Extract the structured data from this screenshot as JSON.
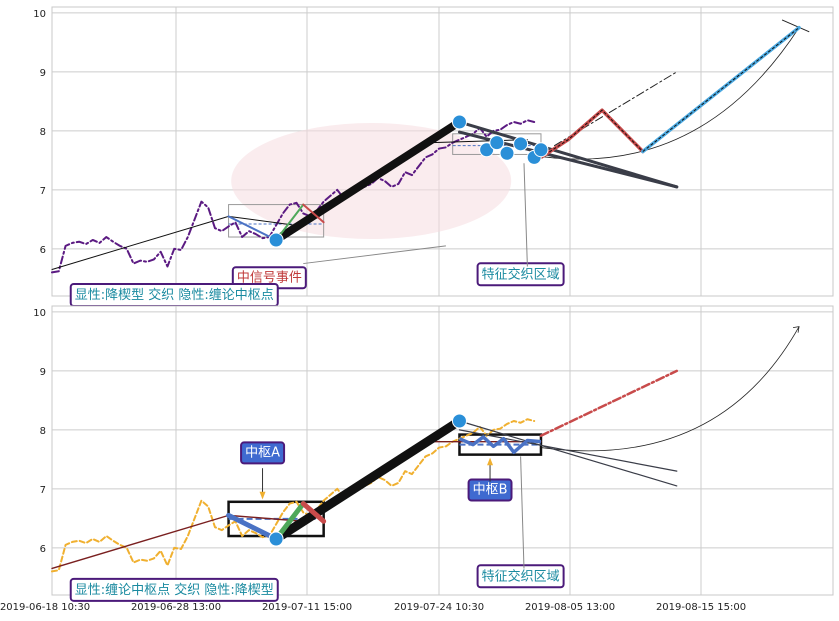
{
  "colors": {
    "grid": "#cccccc",
    "frame": "#c8c8c8",
    "price_top": "#5b1a82",
    "price_bottom": "#f0b030",
    "trend_black": "#111111",
    "blue_marker": "#2a8fd8",
    "bar_blue": "#4a72c4",
    "bar_green": "#4fa85a",
    "bar_red": "#c84b4b",
    "ellipse_fill": "#f6dde0",
    "label_box_edge": "#4b1a7a",
    "label_text_teal": "#1a8aa0",
    "label_text_red": "#c03a3a",
    "zhongshu_fill": "#3f6ad0",
    "light_blue_line": "#4aa8e0"
  },
  "chart_data": [
    {
      "panel": "top",
      "type": "line",
      "xlabel": "",
      "ylabel": "",
      "ylim": [
        5.2,
        10.1
      ],
      "xlim": [
        0,
        115
      ],
      "y_ticks": [
        "6",
        "7",
        "8",
        "9",
        "10"
      ],
      "grid": true,
      "series": [
        {
          "role": "price",
          "style": "dash-dot",
          "x": [
            0,
            1,
            2,
            3,
            4,
            5,
            6,
            7,
            8,
            9,
            10,
            11,
            12,
            13,
            14,
            15,
            16,
            17,
            18,
            19,
            20,
            21,
            22,
            23,
            24,
            25,
            26,
            27,
            28,
            29,
            30,
            31,
            32,
            33,
            34,
            35,
            36,
            37,
            38,
            39,
            40,
            41,
            42,
            43,
            44,
            45,
            46,
            47,
            48,
            49,
            50,
            51,
            52,
            53,
            54,
            55,
            56,
            57,
            58,
            59,
            60,
            61,
            62,
            63,
            64,
            65,
            66,
            67,
            68,
            69,
            70,
            71
          ],
          "y": [
            5.6,
            5.62,
            6.05,
            6.1,
            6.12,
            6.08,
            6.15,
            6.1,
            6.2,
            6.12,
            6.05,
            6.0,
            5.75,
            5.8,
            5.78,
            5.82,
            5.95,
            5.7,
            6.0,
            5.98,
            6.2,
            6.5,
            6.8,
            6.7,
            6.35,
            6.3,
            6.38,
            6.45,
            6.2,
            6.3,
            6.25,
            6.18,
            6.2,
            6.4,
            6.6,
            6.75,
            6.78,
            6.6,
            6.55,
            6.65,
            6.8,
            6.9,
            7.0,
            6.85,
            6.95,
            7.0,
            7.05,
            7.1,
            7.2,
            7.15,
            7.05,
            7.1,
            7.3,
            7.25,
            7.4,
            7.55,
            7.6,
            7.7,
            7.72,
            7.8,
            7.85,
            7.9,
            7.95,
            8.05,
            7.9,
            8.0,
            8.02,
            8.1,
            8.15,
            8.12,
            8.18,
            8.15
          ]
        },
        {
          "role": "trend-thin",
          "x": [
            0,
            26,
            37,
            56,
            70
          ],
          "y": [
            5.65,
            6.55,
            6.38,
            7.8,
            7.85
          ]
        },
        {
          "role": "trend-thick",
          "x": [
            33,
            60
          ],
          "y": [
            6.15,
            8.15
          ]
        },
        {
          "role": "stroke-blue",
          "x": [
            26,
            33
          ],
          "y": [
            6.55,
            6.15
          ]
        },
        {
          "role": "stroke-green",
          "x": [
            33,
            37
          ],
          "y": [
            6.15,
            6.75
          ]
        },
        {
          "role": "stroke-red",
          "x": [
            37,
            40
          ],
          "y": [
            6.75,
            6.45
          ]
        },
        {
          "role": "converging-upper",
          "x": [
            60,
            92
          ],
          "y": [
            8.15,
            7.05
          ]
        },
        {
          "role": "converging-lower",
          "x": [
            60,
            92
          ],
          "y": [
            7.98,
            7.05
          ]
        },
        {
          "role": "dash-projection",
          "x": [
            74,
            92
          ],
          "y": [
            7.75,
            9.0
          ]
        },
        {
          "role": "red-zigzag",
          "x": [
            72,
            76,
            81,
            87
          ],
          "y": [
            7.55,
            7.85,
            8.35,
            7.65
          ]
        },
        {
          "role": "blue-ascent",
          "x": [
            87,
            110
          ],
          "y": [
            7.65,
            9.75
          ]
        }
      ],
      "markers": [
        {
          "x": 33,
          "y": 6.15
        },
        {
          "x": 60,
          "y": 8.15
        },
        {
          "x": 64,
          "y": 7.68
        },
        {
          "x": 65.5,
          "y": 7.8
        },
        {
          "x": 67,
          "y": 7.62
        },
        {
          "x": 69,
          "y": 7.78
        },
        {
          "x": 71,
          "y": 7.55
        },
        {
          "x": 72,
          "y": 7.68
        }
      ],
      "annotations": [
        {
          "text": "中信号事件",
          "x": 32,
          "y": 5.45
        },
        {
          "text": "显性:降楔型 交织 隐性:缠论中枢点",
          "x": 18,
          "y": 5.15
        },
        {
          "text": "特征交织区域",
          "x": 69,
          "y": 5.5
        }
      ]
    },
    {
      "panel": "bottom",
      "type": "line",
      "xlabel": "",
      "ylabel": "",
      "ylim": [
        5.2,
        10.1
      ],
      "xlim": [
        0,
        115
      ],
      "y_ticks": [
        "6",
        "7",
        "8",
        "9",
        "10"
      ],
      "x_ticks": [
        "2019-06-18 10:30",
        "2019-06-28 13:00",
        "2019-07-11 15:00",
        "2019-07-24 10:30",
        "2019-08-05 13:00",
        "2019-08-15 15:00"
      ],
      "grid": true,
      "series": [
        {
          "role": "price",
          "style": "dashed",
          "x": [
            0,
            1,
            2,
            3,
            4,
            5,
            6,
            7,
            8,
            9,
            10,
            11,
            12,
            13,
            14,
            15,
            16,
            17,
            18,
            19,
            20,
            21,
            22,
            23,
            24,
            25,
            26,
            27,
            28,
            29,
            30,
            31,
            32,
            33,
            34,
            35,
            36,
            37,
            38,
            39,
            40,
            41,
            42,
            43,
            44,
            45,
            46,
            47,
            48,
            49,
            50,
            51,
            52,
            53,
            54,
            55,
            56,
            57,
            58,
            59,
            60,
            61,
            62,
            63,
            64,
            65,
            66,
            67,
            68,
            69,
            70,
            71
          ],
          "y": [
            5.6,
            5.62,
            6.05,
            6.1,
            6.12,
            6.08,
            6.15,
            6.1,
            6.2,
            6.12,
            6.05,
            6.0,
            5.75,
            5.8,
            5.78,
            5.82,
            5.95,
            5.7,
            6.0,
            5.98,
            6.2,
            6.5,
            6.8,
            6.7,
            6.35,
            6.3,
            6.38,
            6.45,
            6.2,
            6.3,
            6.25,
            6.18,
            6.2,
            6.4,
            6.6,
            6.75,
            6.78,
            6.6,
            6.55,
            6.65,
            6.8,
            6.9,
            7.0,
            6.85,
            6.95,
            7.0,
            7.05,
            7.1,
            7.2,
            7.15,
            7.05,
            7.1,
            7.3,
            7.25,
            7.4,
            7.55,
            7.6,
            7.7,
            7.72,
            7.8,
            7.85,
            7.9,
            7.95,
            8.05,
            7.9,
            8.0,
            8.02,
            8.1,
            8.15,
            8.12,
            8.18,
            8.15
          ]
        },
        {
          "role": "trend-red-thin",
          "x": [
            0,
            26,
            37,
            56,
            72
          ],
          "y": [
            5.65,
            6.55,
            6.45,
            7.8,
            7.8
          ]
        },
        {
          "role": "trend-thick",
          "x": [
            33,
            60
          ],
          "y": [
            6.15,
            8.15
          ]
        },
        {
          "role": "stroke-blue",
          "x": [
            26,
            33
          ],
          "y": [
            6.55,
            6.15
          ]
        },
        {
          "role": "stroke-green",
          "x": [
            33,
            37
          ],
          "y": [
            6.15,
            6.75
          ]
        },
        {
          "role": "stroke-red",
          "x": [
            37,
            40
          ],
          "y": [
            6.75,
            6.45
          ]
        },
        {
          "role": "converging-upper",
          "x": [
            60,
            92
          ],
          "y": [
            8.15,
            7.05
          ]
        },
        {
          "role": "converging-lower",
          "x": [
            60,
            92
          ],
          "y": [
            8.0,
            7.3
          ]
        },
        {
          "role": "dash-projection",
          "x": [
            72,
            92
          ],
          "y": [
            7.9,
            9.0
          ]
        }
      ],
      "markers": [
        {
          "x": 33,
          "y": 6.15
        },
        {
          "x": 60,
          "y": 8.15
        }
      ],
      "zhongshu": [
        {
          "label": "中枢A",
          "x0": 26,
          "x1": 40,
          "y0": 6.2,
          "y1": 6.78
        },
        {
          "label": "中枢B",
          "x0": 60,
          "x1": 72,
          "y0": 7.58,
          "y1": 7.92
        }
      ],
      "annotations": [
        {
          "text": "中枢A",
          "x": 31,
          "y": 7.55
        },
        {
          "text": "中枢B",
          "x": 64.5,
          "y": 6.92
        },
        {
          "text": "显性:缠论中枢点 交织 隐性:降楔型",
          "x": 18,
          "y": 5.22
        },
        {
          "text": "特征交织区域",
          "x": 69,
          "y": 5.45
        }
      ]
    }
  ]
}
